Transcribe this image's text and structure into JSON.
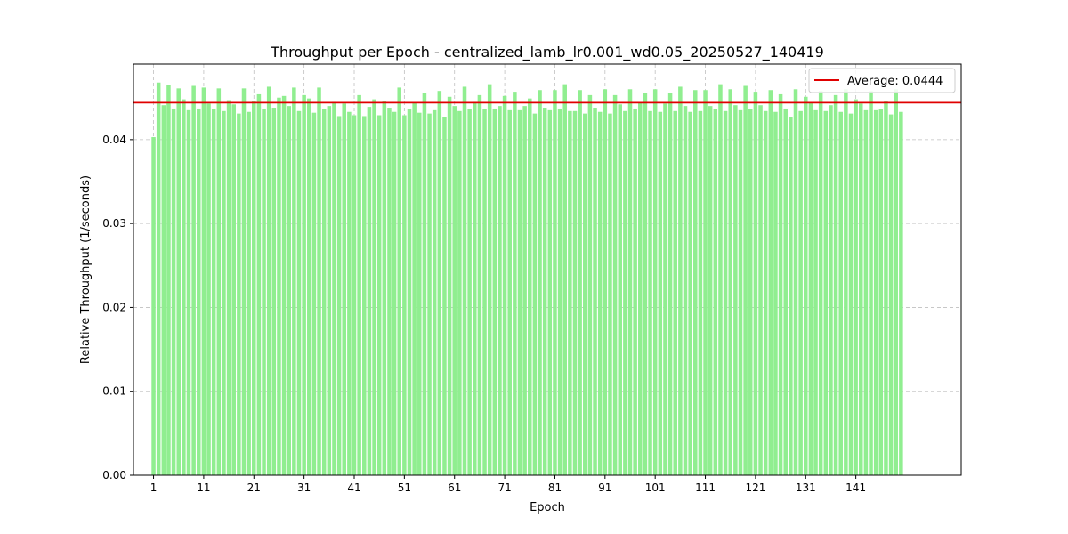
{
  "chart_data": {
    "type": "bar",
    "title": "Throughput per Epoch - centralized_lamb_lr0.001_wd0.05_20250527_140419",
    "xlabel": "Epoch",
    "ylabel": "Relative Throughput (1/seconds)",
    "ylim": [
      0,
      0.049
    ],
    "xlim": [
      -3,
      162
    ],
    "yticks": [
      0.0,
      0.01,
      0.02,
      0.03,
      0.04
    ],
    "ytick_labels": [
      "0.00",
      "0.01",
      "0.02",
      "0.03",
      "0.04"
    ],
    "xticks": [
      1,
      11,
      21,
      31,
      41,
      51,
      61,
      71,
      81,
      91,
      101,
      111,
      121,
      131,
      141
    ],
    "xtick_labels": [
      "1",
      "11",
      "21",
      "31",
      "41",
      "51",
      "61",
      "71",
      "81",
      "91",
      "101",
      "111",
      "121",
      "131",
      "141"
    ],
    "grid": true,
    "bar_color": "#90ee90",
    "x": [
      1,
      2,
      3,
      4,
      5,
      6,
      7,
      8,
      9,
      10,
      11,
      12,
      13,
      14,
      15,
      16,
      17,
      18,
      19,
      20,
      21,
      22,
      23,
      24,
      25,
      26,
      27,
      28,
      29,
      30,
      31,
      32,
      33,
      34,
      35,
      36,
      37,
      38,
      39,
      40,
      41,
      42,
      43,
      44,
      45,
      46,
      47,
      48,
      49,
      50,
      51,
      52,
      53,
      54,
      55,
      56,
      57,
      58,
      59,
      60,
      61,
      62,
      63,
      64,
      65,
      66,
      67,
      68,
      69,
      70,
      71,
      72,
      73,
      74,
      75,
      76,
      77,
      78,
      79,
      80,
      81,
      82,
      83,
      84,
      85,
      86,
      87,
      88,
      89,
      90,
      91,
      92,
      93,
      94,
      95,
      96,
      97,
      98,
      99,
      100,
      101,
      102,
      103,
      104,
      105,
      106,
      107,
      108,
      109,
      110,
      111,
      112,
      113,
      114,
      115,
      116,
      117,
      118,
      119,
      120,
      121,
      122,
      123,
      124,
      125,
      126,
      127,
      128,
      129,
      130,
      131,
      132,
      133,
      134,
      135,
      136,
      137,
      138,
      139,
      140,
      141,
      142,
      143,
      144,
      145,
      146,
      147,
      148,
      149,
      150
    ],
    "values": [
      0.0403,
      0.0468,
      0.0441,
      0.0465,
      0.0437,
      0.0461,
      0.0448,
      0.0435,
      0.0464,
      0.0437,
      0.0462,
      0.0443,
      0.0436,
      0.0461,
      0.0434,
      0.0447,
      0.0442,
      0.0431,
      0.0461,
      0.0433,
      0.0446,
      0.0454,
      0.0436,
      0.0463,
      0.0438,
      0.045,
      0.0452,
      0.044,
      0.0462,
      0.0434,
      0.0453,
      0.0449,
      0.0432,
      0.0462,
      0.0436,
      0.044,
      0.0445,
      0.0428,
      0.0443,
      0.0433,
      0.0429,
      0.0453,
      0.0428,
      0.0439,
      0.0448,
      0.0429,
      0.0446,
      0.0438,
      0.0433,
      0.0462,
      0.0429,
      0.0436,
      0.0444,
      0.0432,
      0.0456,
      0.0431,
      0.0435,
      0.0458,
      0.0427,
      0.0451,
      0.044,
      0.0434,
      0.0463,
      0.0436,
      0.0445,
      0.0453,
      0.0436,
      0.0466,
      0.0437,
      0.044,
      0.0452,
      0.0435,
      0.0457,
      0.0435,
      0.044,
      0.0449,
      0.0431,
      0.0459,
      0.0438,
      0.0435,
      0.0459,
      0.0437,
      0.0466,
      0.0434,
      0.0434,
      0.0459,
      0.0431,
      0.0453,
      0.0438,
      0.0433,
      0.046,
      0.0431,
      0.0453,
      0.0442,
      0.0434,
      0.046,
      0.0437,
      0.0444,
      0.0455,
      0.0434,
      0.046,
      0.0433,
      0.0443,
      0.0455,
      0.0434,
      0.0463,
      0.044,
      0.0433,
      0.0459,
      0.0434,
      0.0459,
      0.044,
      0.0436,
      0.0466,
      0.0434,
      0.046,
      0.0441,
      0.0435,
      0.0464,
      0.0436,
      0.0457,
      0.0441,
      0.0434,
      0.0459,
      0.0433,
      0.0454,
      0.0437,
      0.0427,
      0.046,
      0.0434,
      0.0451,
      0.0444,
      0.0435,
      0.0458,
      0.0434,
      0.0441,
      0.0453,
      0.0433,
      0.046,
      0.0431,
      0.0448,
      0.0443,
      0.0435,
      0.0458,
      0.0435,
      0.0436,
      0.0446,
      0.043,
      0.046,
      0.0433
    ],
    "reference_line": {
      "value": 0.0444,
      "color": "#e00000",
      "label": "Average: 0.0444"
    },
    "legend_position": "top-right"
  }
}
